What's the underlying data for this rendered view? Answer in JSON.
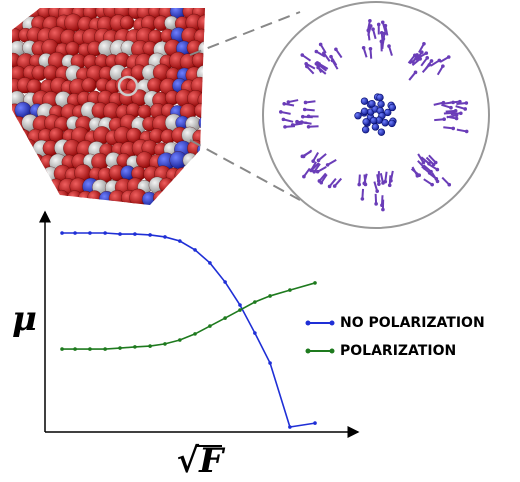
{
  "chart_data": {
    "type": "line",
    "y_label": "μ",
    "x_label": "√F",
    "xlim": [
      0,
      100
    ],
    "ylim": [
      0,
      100
    ],
    "x": [
      5.5,
      9.7,
      14.5,
      19.4,
      24.2,
      29,
      33.9,
      38.7,
      43.5,
      48.4,
      53.2,
      58.1,
      62.9,
      67.7,
      72.6,
      79,
      87.1
    ],
    "series": [
      {
        "name": "NO POLARIZATION",
        "color": "#1f2fd6",
        "values": [
          91.7,
          91.7,
          91.7,
          91.7,
          91.2,
          91.2,
          90.8,
          89.9,
          88.0,
          83.9,
          77.9,
          69.1,
          58.5,
          45.6,
          31.8,
          2.3,
          4.1
        ]
      },
      {
        "name": "POLARIZATION",
        "color": "#1e7a1e",
        "values": [
          38.2,
          38.2,
          38.2,
          38.2,
          38.7,
          39.2,
          39.6,
          40.6,
          42.4,
          45.2,
          48.8,
          52.5,
          56.2,
          59.9,
          62.7,
          65.4,
          68.7
        ]
      }
    ]
  }
}
